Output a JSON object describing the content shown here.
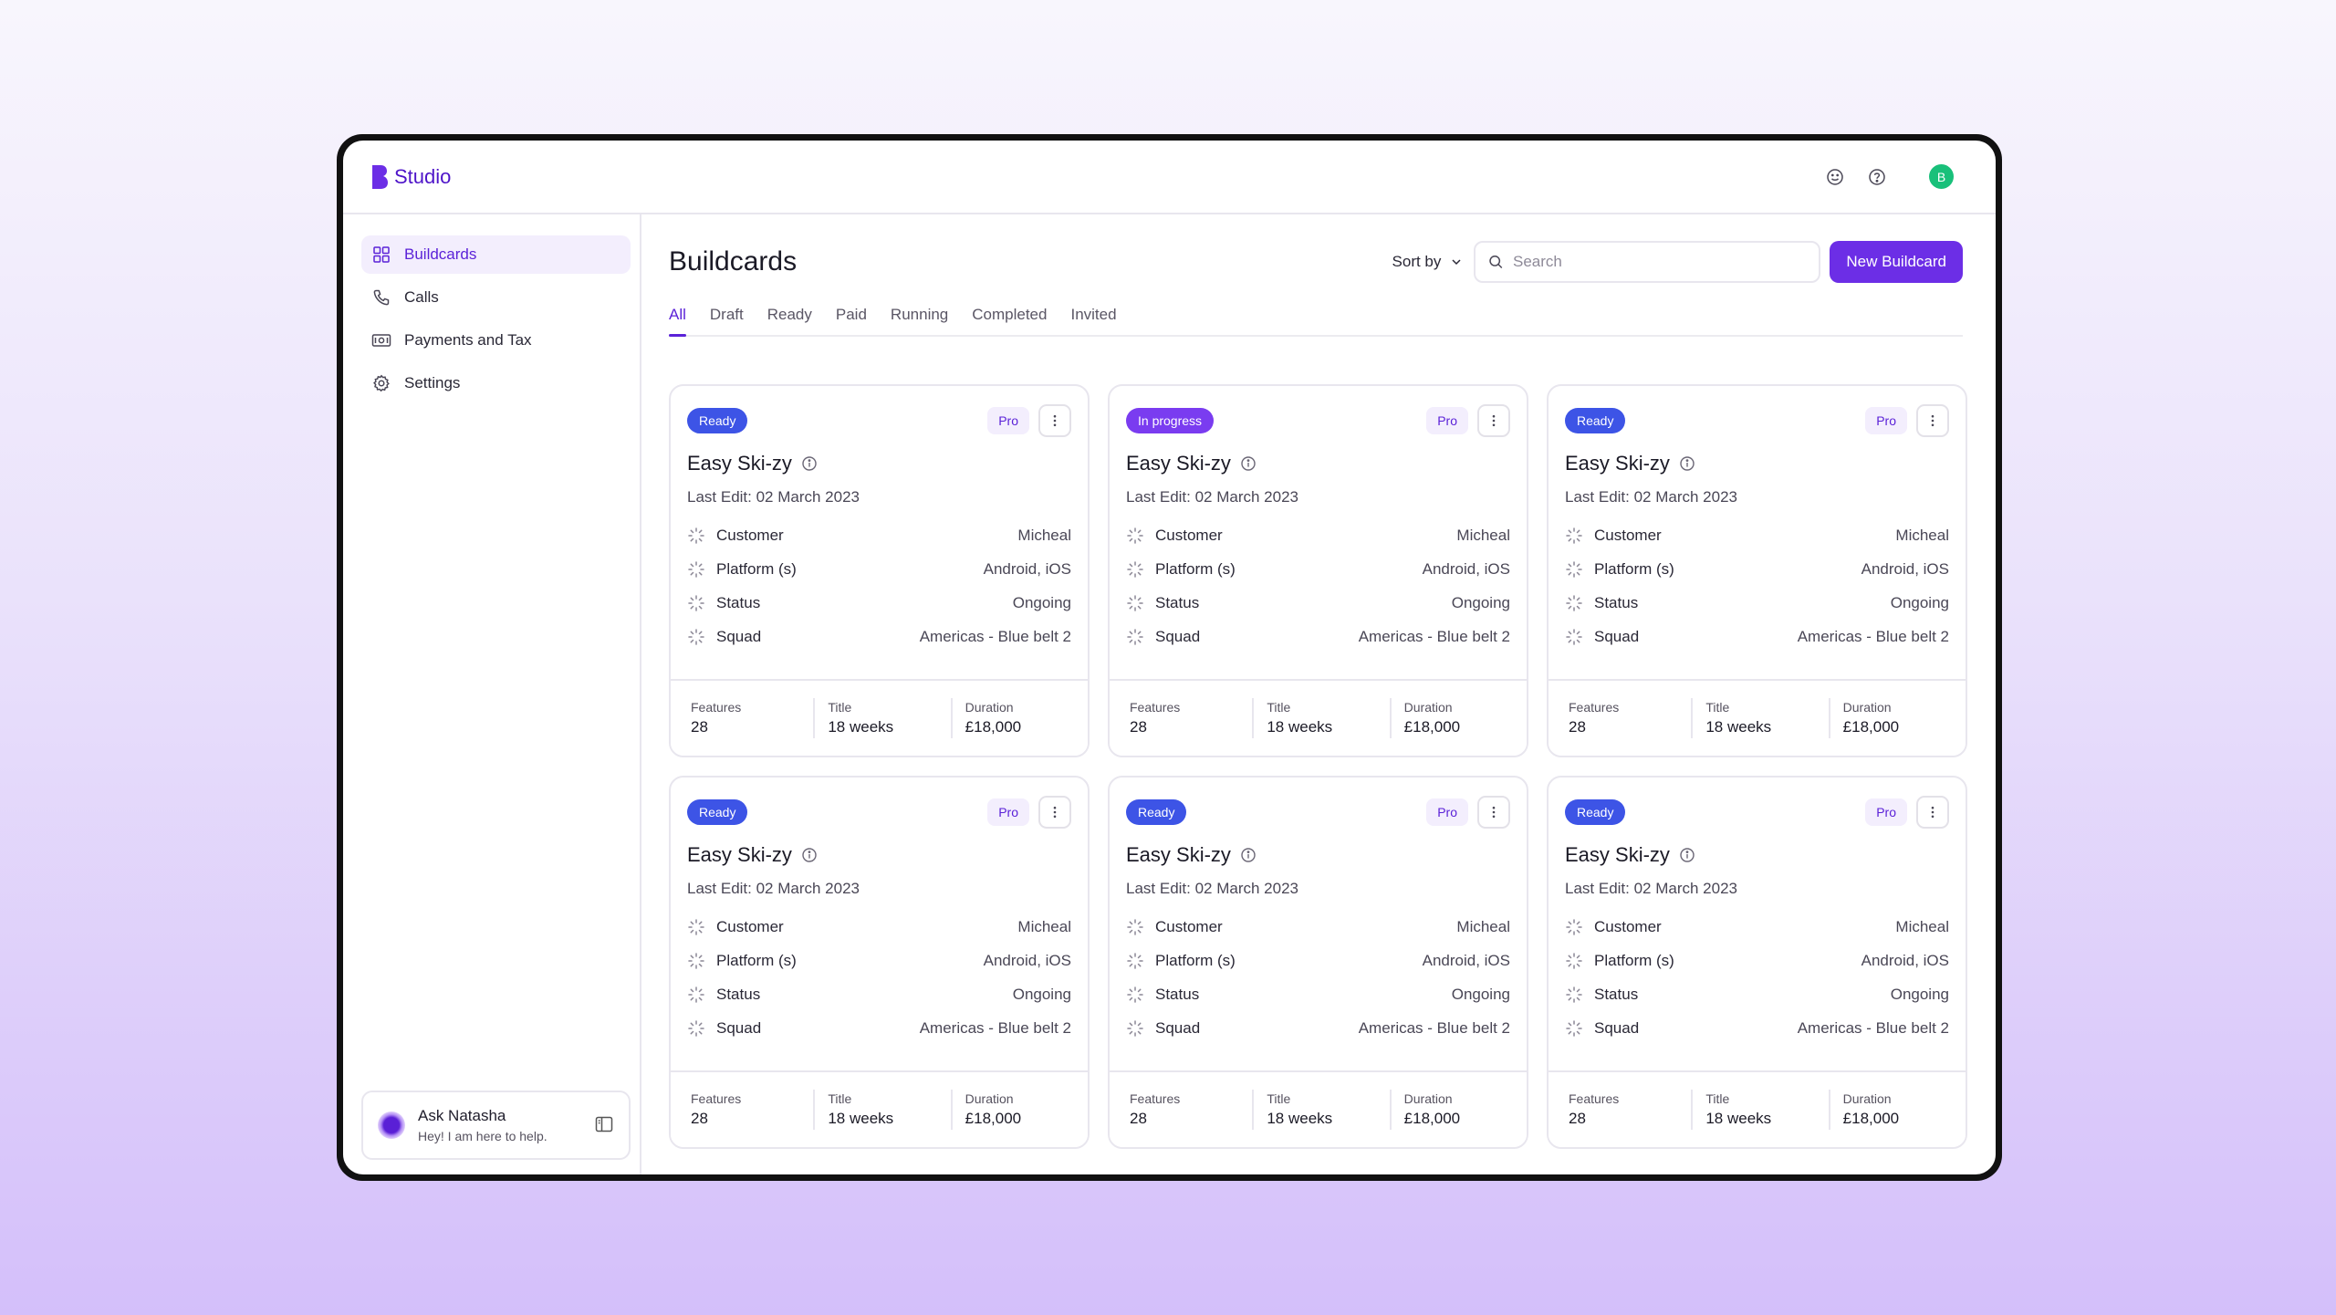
{
  "app": {
    "name": "Studio",
    "brand_color": "#6c2ee6"
  },
  "header": {
    "icons": [
      "smiley-icon",
      "help-icon"
    ],
    "avatar_initial": "B"
  },
  "sidebar": {
    "items": [
      {
        "label": "Buildcards",
        "icon": "grid-icon",
        "active": true
      },
      {
        "label": "Calls",
        "icon": "phone-icon",
        "active": false
      },
      {
        "label": "Payments and Tax",
        "icon": "money-icon",
        "active": false
      },
      {
        "label": "Settings",
        "icon": "gear-icon",
        "active": false
      }
    ],
    "assistant": {
      "title": "Ask Natasha",
      "subtitle": "Hey! I am here to help."
    }
  },
  "main": {
    "title": "Buildcards",
    "sort_label": "Sort by",
    "search": {
      "placeholder": "Search",
      "value": ""
    },
    "new_button_label": "New Buildcard",
    "tabs": [
      {
        "label": "All",
        "active": true
      },
      {
        "label": "Draft",
        "active": false
      },
      {
        "label": "Ready",
        "active": false
      },
      {
        "label": "Paid",
        "active": false
      },
      {
        "label": "Running",
        "active": false
      },
      {
        "label": "Completed",
        "active": false
      },
      {
        "label": "Invited",
        "active": false
      }
    ]
  },
  "cards": [
    {
      "status": "Ready",
      "status_type": "ready",
      "tier": "Pro",
      "name": "Easy Ski-zy",
      "last_edit": "Last Edit: 02 March 2023",
      "props": [
        {
          "label": "Customer",
          "value": "Micheal"
        },
        {
          "label": "Platform (s)",
          "value": "Android, iOS"
        },
        {
          "label": "Status",
          "value": "Ongoing"
        },
        {
          "label": "Squad",
          "value": "Americas - Blue belt 2"
        }
      ],
      "stats": [
        {
          "label": "Features",
          "value": "28"
        },
        {
          "label": "Title",
          "value": "18 weeks"
        },
        {
          "label": "Duration",
          "value": "£18,000"
        }
      ]
    },
    {
      "status": "In progress",
      "status_type": "progress",
      "tier": "Pro",
      "name": "Easy Ski-zy",
      "last_edit": "Last Edit: 02 March 2023",
      "props": [
        {
          "label": "Customer",
          "value": "Micheal"
        },
        {
          "label": "Platform (s)",
          "value": "Android, iOS"
        },
        {
          "label": "Status",
          "value": "Ongoing"
        },
        {
          "label": "Squad",
          "value": "Americas - Blue belt 2"
        }
      ],
      "stats": [
        {
          "label": "Features",
          "value": "28"
        },
        {
          "label": "Title",
          "value": "18 weeks"
        },
        {
          "label": "Duration",
          "value": "£18,000"
        }
      ]
    },
    {
      "status": "Ready",
      "status_type": "ready",
      "tier": "Pro",
      "name": "Easy Ski-zy",
      "last_edit": "Last Edit: 02 March 2023",
      "props": [
        {
          "label": "Customer",
          "value": "Micheal"
        },
        {
          "label": "Platform (s)",
          "value": "Android, iOS"
        },
        {
          "label": "Status",
          "value": "Ongoing"
        },
        {
          "label": "Squad",
          "value": "Americas - Blue belt 2"
        }
      ],
      "stats": [
        {
          "label": "Features",
          "value": "28"
        },
        {
          "label": "Title",
          "value": "18 weeks"
        },
        {
          "label": "Duration",
          "value": "£18,000"
        }
      ]
    },
    {
      "status": "Ready",
      "status_type": "ready",
      "tier": "Pro",
      "name": "Easy Ski-zy",
      "last_edit": "Last Edit: 02 March 2023",
      "props": [
        {
          "label": "Customer",
          "value": "Micheal"
        },
        {
          "label": "Platform (s)",
          "value": "Android, iOS"
        },
        {
          "label": "Status",
          "value": "Ongoing"
        },
        {
          "label": "Squad",
          "value": "Americas - Blue belt 2"
        }
      ],
      "stats": [
        {
          "label": "Features",
          "value": "28"
        },
        {
          "label": "Title",
          "value": "18 weeks"
        },
        {
          "label": "Duration",
          "value": "£18,000"
        }
      ]
    },
    {
      "status": "Ready",
      "status_type": "ready",
      "tier": "Pro",
      "name": "Easy Ski-zy",
      "last_edit": "Last Edit: 02 March 2023",
      "props": [
        {
          "label": "Customer",
          "value": "Micheal"
        },
        {
          "label": "Platform (s)",
          "value": "Android, iOS"
        },
        {
          "label": "Status",
          "value": "Ongoing"
        },
        {
          "label": "Squad",
          "value": "Americas - Blue belt 2"
        }
      ],
      "stats": [
        {
          "label": "Features",
          "value": "28"
        },
        {
          "label": "Title",
          "value": "18 weeks"
        },
        {
          "label": "Duration",
          "value": "£18,000"
        }
      ]
    },
    {
      "status": "Ready",
      "status_type": "ready",
      "tier": "Pro",
      "name": "Easy Ski-zy",
      "last_edit": "Last Edit: 02 March 2023",
      "props": [
        {
          "label": "Customer",
          "value": "Micheal"
        },
        {
          "label": "Platform (s)",
          "value": "Android, iOS"
        },
        {
          "label": "Status",
          "value": "Ongoing"
        },
        {
          "label": "Squad",
          "value": "Americas - Blue belt 2"
        }
      ],
      "stats": [
        {
          "label": "Features",
          "value": "28"
        },
        {
          "label": "Title",
          "value": "18 weeks"
        },
        {
          "label": "Duration",
          "value": "£18,000"
        }
      ]
    }
  ]
}
